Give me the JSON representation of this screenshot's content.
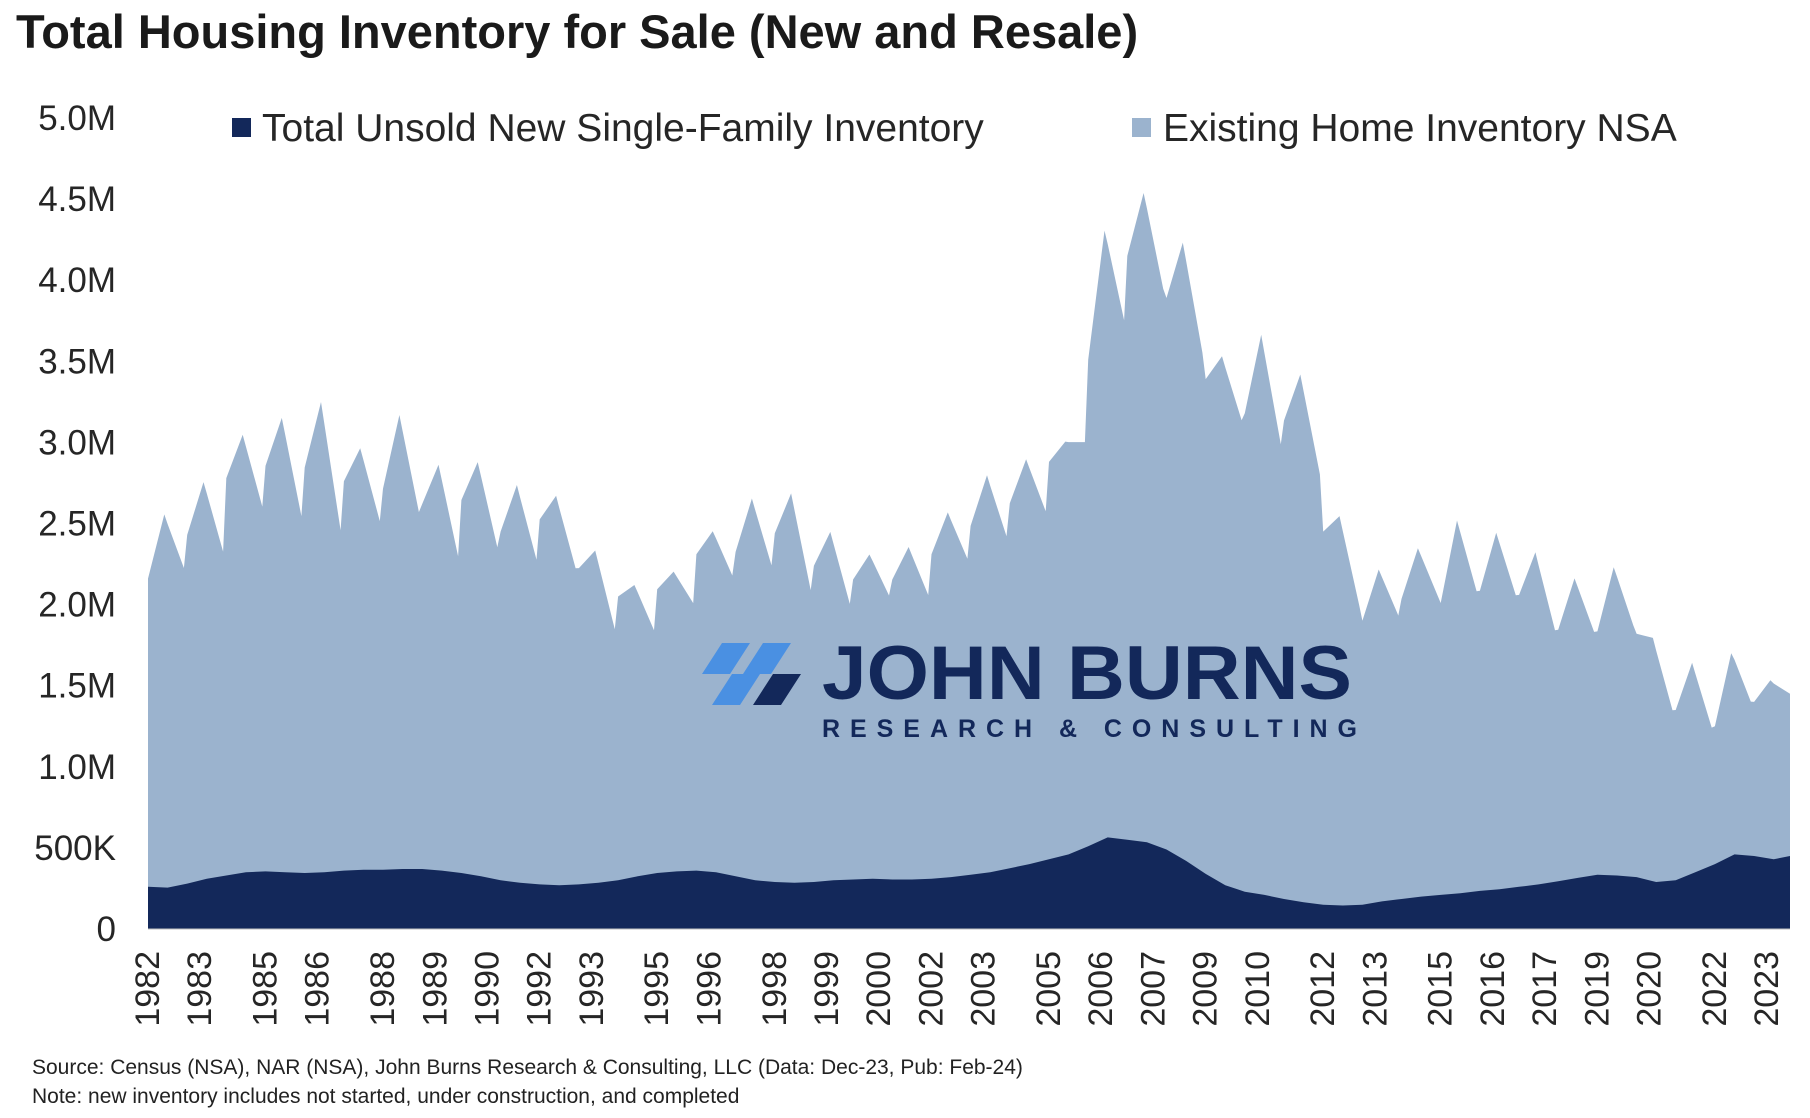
{
  "title": "Total Housing Inventory for Sale (New and Resale)",
  "footer": {
    "source": "Source: Census (NSA), NAR (NSA), John Burns Research & Consulting, LLC (Data: Dec-23, Pub: Feb-24)",
    "note": "Note: new inventory includes not started, under construction, and completed"
  },
  "logo": {
    "name": "JOHN BURNS",
    "sub": "RESEARCH & CONSULTING"
  },
  "colors": {
    "new": "#13285a",
    "existing": "#9bb3ce",
    "logo_accent": "#4a90e2"
  },
  "chart_data": {
    "type": "area",
    "stacked": true,
    "title": "Total Housing Inventory for Sale (New and Resale)",
    "xlabel": "",
    "ylabel": "",
    "ylim": [
      0,
      5000000
    ],
    "xlim": [
      "1982-01",
      "2023-12"
    ],
    "y_ticks": [
      {
        "value": 0,
        "label": "0"
      },
      {
        "value": 500000,
        "label": "500K"
      },
      {
        "value": 1000000,
        "label": "1.0M"
      },
      {
        "value": 1500000,
        "label": "1.5M"
      },
      {
        "value": 2000000,
        "label": "2.0M"
      },
      {
        "value": 2500000,
        "label": "2.5M"
      },
      {
        "value": 3000000,
        "label": "3.0M"
      },
      {
        "value": 3500000,
        "label": "3.5M"
      },
      {
        "value": 4000000,
        "label": "4.0M"
      },
      {
        "value": 4500000,
        "label": "4.5M"
      },
      {
        "value": 5000000,
        "label": "5.0M"
      }
    ],
    "x_ticks": [
      {
        "date": "1982-01",
        "label": "1982"
      },
      {
        "date": "1983-05",
        "label": "1983"
      },
      {
        "date": "1985-01",
        "label": "1985"
      },
      {
        "date": "1986-05",
        "label": "1986"
      },
      {
        "date": "1988-01",
        "label": "1988"
      },
      {
        "date": "1989-05",
        "label": "1989"
      },
      {
        "date": "1990-09",
        "label": "1990"
      },
      {
        "date": "1992-01",
        "label": "1992"
      },
      {
        "date": "1993-05",
        "label": "1993"
      },
      {
        "date": "1995-01",
        "label": "1995"
      },
      {
        "date": "1996-05",
        "label": "1996"
      },
      {
        "date": "1998-01",
        "label": "1998"
      },
      {
        "date": "1999-05",
        "label": "1999"
      },
      {
        "date": "2000-09",
        "label": "2000"
      },
      {
        "date": "2002-01",
        "label": "2002"
      },
      {
        "date": "2003-05",
        "label": "2003"
      },
      {
        "date": "2005-01",
        "label": "2005"
      },
      {
        "date": "2006-05",
        "label": "2006"
      },
      {
        "date": "2007-09",
        "label": "2007"
      },
      {
        "date": "2009-01",
        "label": "2009"
      },
      {
        "date": "2010-05",
        "label": "2010"
      },
      {
        "date": "2012-01",
        "label": "2012"
      },
      {
        "date": "2013-05",
        "label": "2013"
      },
      {
        "date": "2015-01",
        "label": "2015"
      },
      {
        "date": "2016-05",
        "label": "2016"
      },
      {
        "date": "2017-09",
        "label": "2017"
      },
      {
        "date": "2019-01",
        "label": "2019"
      },
      {
        "date": "2020-05",
        "label": "2020"
      },
      {
        "date": "2022-01",
        "label": "2022"
      },
      {
        "date": "2023-05",
        "label": "2023"
      }
    ],
    "legend": {
      "position": "top"
    },
    "series": [
      {
        "name": "Total Unsold New Single-Family Inventory",
        "color": "#13285a",
        "points": [
          [
            "1982-01",
            260000
          ],
          [
            "1982-07",
            255000
          ],
          [
            "1983-01",
            280000
          ],
          [
            "1983-07",
            310000
          ],
          [
            "1984-01",
            330000
          ],
          [
            "1984-07",
            350000
          ],
          [
            "1985-01",
            355000
          ],
          [
            "1985-07",
            350000
          ],
          [
            "1986-01",
            345000
          ],
          [
            "1986-07",
            350000
          ],
          [
            "1987-01",
            360000
          ],
          [
            "1987-07",
            365000
          ],
          [
            "1988-01",
            365000
          ],
          [
            "1988-07",
            370000
          ],
          [
            "1989-01",
            370000
          ],
          [
            "1989-07",
            360000
          ],
          [
            "1990-01",
            345000
          ],
          [
            "1990-07",
            325000
          ],
          [
            "1991-01",
            300000
          ],
          [
            "1991-07",
            285000
          ],
          [
            "1992-01",
            275000
          ],
          [
            "1992-07",
            270000
          ],
          [
            "1993-01",
            275000
          ],
          [
            "1993-07",
            285000
          ],
          [
            "1994-01",
            300000
          ],
          [
            "1994-07",
            325000
          ],
          [
            "1995-01",
            345000
          ],
          [
            "1995-07",
            355000
          ],
          [
            "1996-01",
            360000
          ],
          [
            "1996-07",
            350000
          ],
          [
            "1997-01",
            325000
          ],
          [
            "1997-07",
            300000
          ],
          [
            "1998-01",
            290000
          ],
          [
            "1998-07",
            285000
          ],
          [
            "1999-01",
            290000
          ],
          [
            "1999-07",
            300000
          ],
          [
            "2000-01",
            305000
          ],
          [
            "2000-07",
            310000
          ],
          [
            "2001-01",
            305000
          ],
          [
            "2001-07",
            305000
          ],
          [
            "2002-01",
            310000
          ],
          [
            "2002-07",
            320000
          ],
          [
            "2003-01",
            335000
          ],
          [
            "2003-07",
            350000
          ],
          [
            "2004-01",
            375000
          ],
          [
            "2004-07",
            400000
          ],
          [
            "2005-01",
            430000
          ],
          [
            "2005-07",
            460000
          ],
          [
            "2006-01",
            510000
          ],
          [
            "2006-07",
            565000
          ],
          [
            "2007-01",
            550000
          ],
          [
            "2007-07",
            535000
          ],
          [
            "2008-01",
            490000
          ],
          [
            "2008-07",
            420000
          ],
          [
            "2009-01",
            340000
          ],
          [
            "2009-07",
            270000
          ],
          [
            "2010-01",
            230000
          ],
          [
            "2010-07",
            210000
          ],
          [
            "2011-01",
            185000
          ],
          [
            "2011-07",
            165000
          ],
          [
            "2012-01",
            150000
          ],
          [
            "2012-07",
            145000
          ],
          [
            "2013-01",
            150000
          ],
          [
            "2013-07",
            170000
          ],
          [
            "2014-01",
            185000
          ],
          [
            "2014-07",
            200000
          ],
          [
            "2015-01",
            210000
          ],
          [
            "2015-07",
            220000
          ],
          [
            "2016-01",
            235000
          ],
          [
            "2016-07",
            245000
          ],
          [
            "2017-01",
            260000
          ],
          [
            "2017-07",
            275000
          ],
          [
            "2018-01",
            295000
          ],
          [
            "2018-07",
            315000
          ],
          [
            "2019-01",
            335000
          ],
          [
            "2019-07",
            330000
          ],
          [
            "2020-01",
            320000
          ],
          [
            "2020-07",
            290000
          ],
          [
            "2021-01",
            300000
          ],
          [
            "2021-07",
            350000
          ],
          [
            "2022-01",
            400000
          ],
          [
            "2022-07",
            460000
          ],
          [
            "2023-01",
            450000
          ],
          [
            "2023-07",
            430000
          ],
          [
            "2023-12",
            450000
          ]
        ]
      },
      {
        "name": "Existing Home Inventory NSA",
        "color": "#9bb3ce",
        "points": [
          [
            "1982-01",
            1900000
          ],
          [
            "1982-06",
            2300000
          ],
          [
            "1982-12",
            1950000
          ],
          [
            "1983-01",
            2150000
          ],
          [
            "1983-06",
            2450000
          ],
          [
            "1983-12",
            2000000
          ],
          [
            "1984-01",
            2450000
          ],
          [
            "1984-06",
            2700000
          ],
          [
            "1984-12",
            2250000
          ],
          [
            "1985-01",
            2500000
          ],
          [
            "1985-06",
            2800000
          ],
          [
            "1985-12",
            2200000
          ],
          [
            "1986-01",
            2500000
          ],
          [
            "1986-06",
            2900000
          ],
          [
            "1986-12",
            2100000
          ],
          [
            "1987-01",
            2400000
          ],
          [
            "1987-06",
            2600000
          ],
          [
            "1987-12",
            2150000
          ],
          [
            "1988-01",
            2350000
          ],
          [
            "1988-06",
            2800000
          ],
          [
            "1988-12",
            2200000
          ],
          [
            "1989-01",
            2250000
          ],
          [
            "1989-06",
            2500000
          ],
          [
            "1989-12",
            1950000
          ],
          [
            "1990-01",
            2300000
          ],
          [
            "1990-06",
            2550000
          ],
          [
            "1990-12",
            2050000
          ],
          [
            "1991-01",
            2150000
          ],
          [
            "1991-06",
            2450000
          ],
          [
            "1991-12",
            2000000
          ],
          [
            "1992-01",
            2250000
          ],
          [
            "1992-06",
            2400000
          ],
          [
            "1992-12",
            1950000
          ],
          [
            "1993-01",
            1950000
          ],
          [
            "1993-06",
            2050000
          ],
          [
            "1993-12",
            1550000
          ],
          [
            "1994-01",
            1750000
          ],
          [
            "1994-06",
            1800000
          ],
          [
            "1994-12",
            1500000
          ],
          [
            "1995-01",
            1750000
          ],
          [
            "1995-06",
            1850000
          ],
          [
            "1995-12",
            1650000
          ],
          [
            "1996-01",
            1950000
          ],
          [
            "1996-06",
            2100000
          ],
          [
            "1996-12",
            1850000
          ],
          [
            "1997-01",
            2000000
          ],
          [
            "1997-06",
            2350000
          ],
          [
            "1997-12",
            1950000
          ],
          [
            "1998-01",
            2150000
          ],
          [
            "1998-06",
            2400000
          ],
          [
            "1998-12",
            1800000
          ],
          [
            "1999-01",
            1950000
          ],
          [
            "1999-06",
            2150000
          ],
          [
            "1999-12",
            1700000
          ],
          [
            "2000-01",
            1850000
          ],
          [
            "2000-06",
            2000000
          ],
          [
            "2000-12",
            1750000
          ],
          [
            "2001-01",
            1850000
          ],
          [
            "2001-06",
            2050000
          ],
          [
            "2001-12",
            1750000
          ],
          [
            "2002-01",
            2000000
          ],
          [
            "2002-06",
            2250000
          ],
          [
            "2002-12",
            1950000
          ],
          [
            "2003-01",
            2150000
          ],
          [
            "2003-06",
            2450000
          ],
          [
            "2003-12",
            2050000
          ],
          [
            "2004-01",
            2250000
          ],
          [
            "2004-06",
            2500000
          ],
          [
            "2004-12",
            2150000
          ],
          [
            "2005-01",
            2450000
          ],
          [
            "2005-06",
            2550000
          ],
          [
            "2005-12",
            2500000
          ],
          [
            "2006-01",
            3000000
          ],
          [
            "2006-06",
            3750000
          ],
          [
            "2006-12",
            3200000
          ],
          [
            "2007-01",
            3600000
          ],
          [
            "2007-06",
            4000000
          ],
          [
            "2007-12",
            3450000
          ],
          [
            "2008-01",
            3400000
          ],
          [
            "2008-06",
            3800000
          ],
          [
            "2008-12",
            3200000
          ],
          [
            "2009-01",
            3050000
          ],
          [
            "2009-06",
            3250000
          ],
          [
            "2009-12",
            2900000
          ],
          [
            "2010-01",
            2950000
          ],
          [
            "2010-06",
            3450000
          ],
          [
            "2010-12",
            2800000
          ],
          [
            "2011-01",
            2950000
          ],
          [
            "2011-06",
            3250000
          ],
          [
            "2011-12",
            2650000
          ],
          [
            "2012-01",
            2300000
          ],
          [
            "2012-06",
            2400000
          ],
          [
            "2012-12",
            1850000
          ],
          [
            "2013-01",
            1750000
          ],
          [
            "2013-06",
            2050000
          ],
          [
            "2013-12",
            1750000
          ],
          [
            "2014-01",
            1850000
          ],
          [
            "2014-06",
            2150000
          ],
          [
            "2014-12",
            1850000
          ],
          [
            "2015-01",
            1800000
          ],
          [
            "2015-06",
            2300000
          ],
          [
            "2015-12",
            1850000
          ],
          [
            "2016-01",
            1850000
          ],
          [
            "2016-06",
            2200000
          ],
          [
            "2016-12",
            1800000
          ],
          [
            "2017-01",
            1800000
          ],
          [
            "2017-06",
            2050000
          ],
          [
            "2017-12",
            1550000
          ],
          [
            "2018-01",
            1550000
          ],
          [
            "2018-06",
            1850000
          ],
          [
            "2018-12",
            1500000
          ],
          [
            "2019-01",
            1500000
          ],
          [
            "2019-06",
            1900000
          ],
          [
            "2019-12",
            1550000
          ],
          [
            "2020-01",
            1500000
          ],
          [
            "2020-06",
            1500000
          ],
          [
            "2020-12",
            1050000
          ],
          [
            "2021-01",
            1050000
          ],
          [
            "2021-06",
            1300000
          ],
          [
            "2021-12",
            850000
          ],
          [
            "2022-01",
            850000
          ],
          [
            "2022-06",
            1250000
          ],
          [
            "2022-12",
            950000
          ],
          [
            "2023-01",
            950000
          ],
          [
            "2023-06",
            1100000
          ],
          [
            "2023-12",
            1000000
          ]
        ]
      }
    ]
  }
}
